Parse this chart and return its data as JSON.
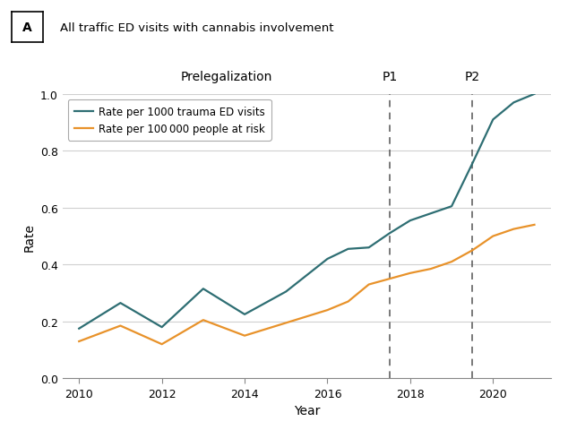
{
  "title": "All traffic ED visits with cannabis involvement",
  "panel_label": "A",
  "xlabel": "Year",
  "ylabel": "Rate",
  "prelegalization_label": "Prelegalization",
  "p1_label": "P1",
  "p2_label": "P2",
  "vline1_x": 2017.5,
  "vline2_x": 2019.5,
  "years_teal": [
    2010,
    2011,
    2012,
    2013,
    2014,
    2015,
    2016,
    2016.5,
    2017,
    2017.5,
    2018,
    2018.5,
    2019,
    2019.5,
    2020,
    2020.5,
    2021
  ],
  "values_teal": [
    0.175,
    0.265,
    0.18,
    0.315,
    0.225,
    0.305,
    0.42,
    0.455,
    0.46,
    0.51,
    0.555,
    0.58,
    0.605,
    0.755,
    0.91,
    0.97,
    1.0
  ],
  "years_orange": [
    2010,
    2011,
    2012,
    2013,
    2014,
    2015,
    2016,
    2016.5,
    2017,
    2017.5,
    2018,
    2018.5,
    2019,
    2019.5,
    2020,
    2020.5,
    2021
  ],
  "values_orange": [
    0.13,
    0.185,
    0.12,
    0.205,
    0.15,
    0.195,
    0.24,
    0.27,
    0.33,
    0.35,
    0.37,
    0.385,
    0.41,
    0.45,
    0.5,
    0.525,
    0.54
  ],
  "color_teal": "#2E6E73",
  "color_orange": "#E8922A",
  "legend_teal": "Rate per 1000 trauma ED visits",
  "legend_orange": "Rate per 100 000 people at risk",
  "ylim": [
    0,
    1.0
  ],
  "xlim": [
    2009.6,
    2021.4
  ],
  "yticks": [
    0,
    0.2,
    0.4,
    0.6,
    0.8,
    1.0
  ],
  "xticks": [
    2010,
    2012,
    2014,
    2016,
    2018,
    2020
  ],
  "background_color": "#ffffff",
  "grid_color": "#d0d0d0",
  "vline_color": "#555555"
}
